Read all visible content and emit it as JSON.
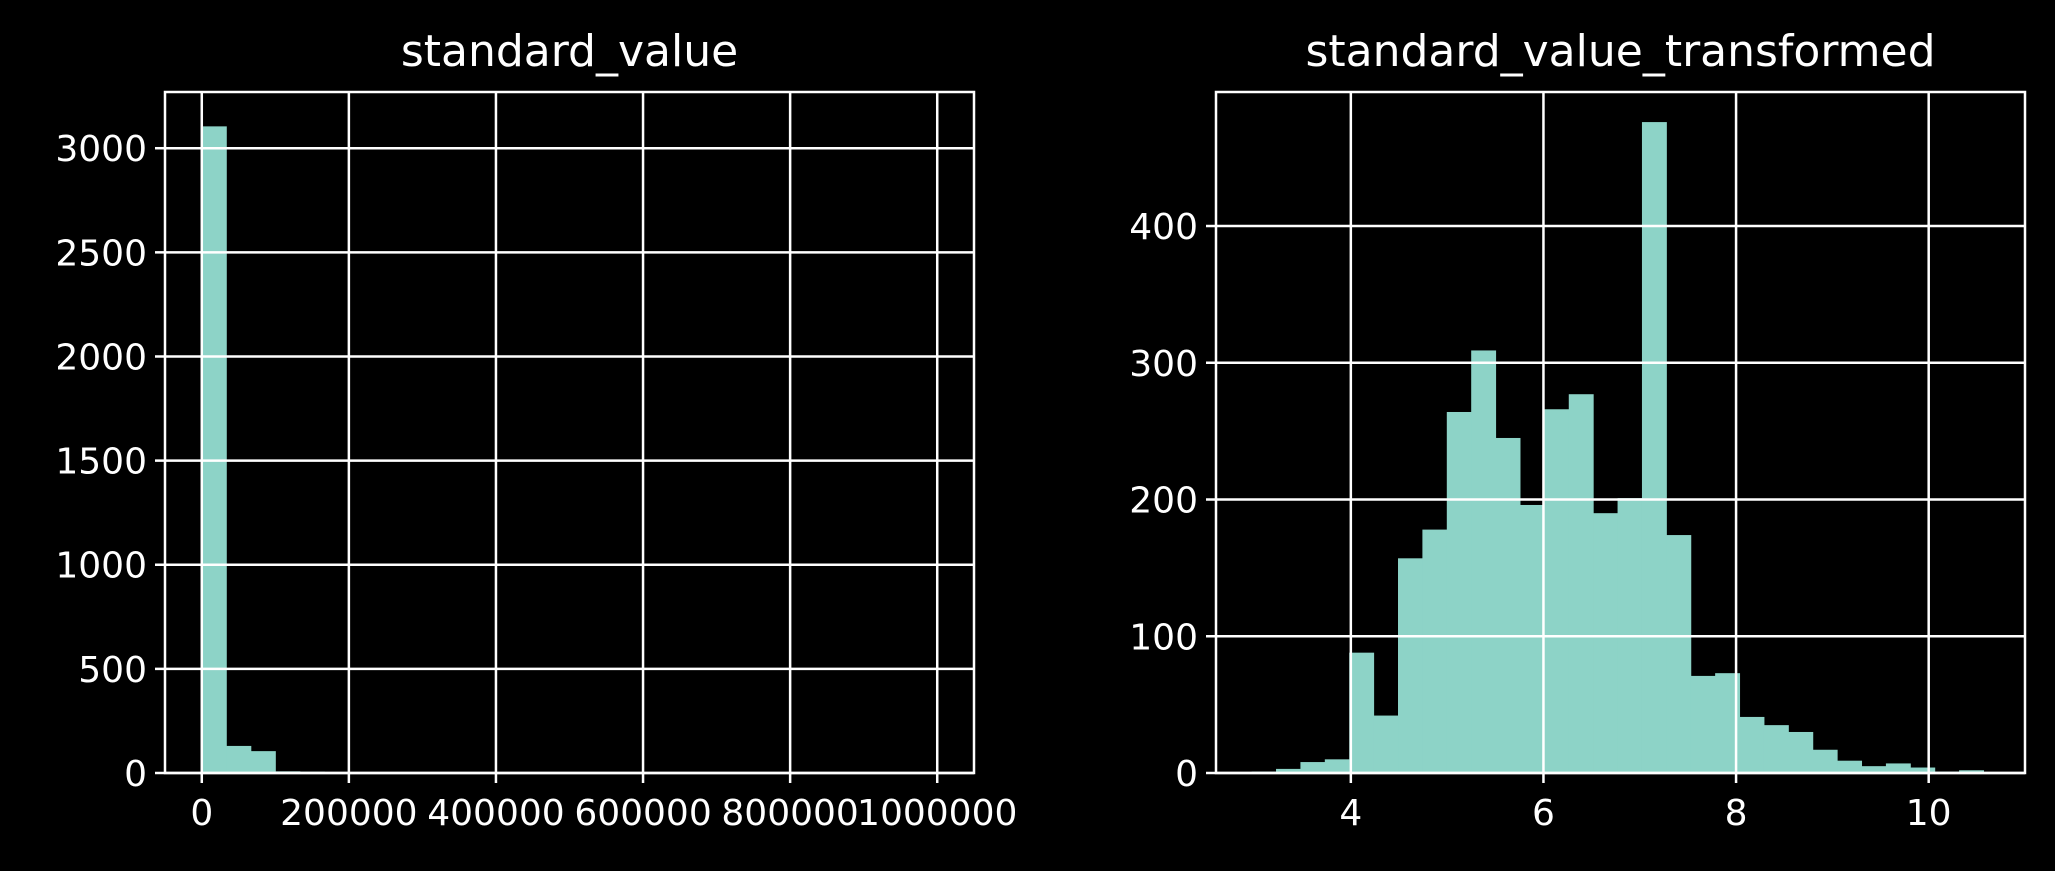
{
  "chart_data": [
    {
      "type": "bar",
      "title": "standard_value",
      "xlabel": "",
      "ylabel": "",
      "xlim": [
        -50000,
        1050000
      ],
      "ylim": [
        0,
        3270
      ],
      "xticks": [
        0,
        200000,
        400000,
        600000,
        800000,
        1000000
      ],
      "xtick_labels": [
        "0",
        "200000",
        "400000",
        "600000",
        "800000",
        "1000000"
      ],
      "yticks": [
        0,
        500,
        1000,
        1500,
        2000,
        2500,
        3000
      ],
      "ytick_labels": [
        "0",
        "500",
        "1000",
        "1500",
        "2000",
        "2500",
        "3000"
      ],
      "grid": true,
      "bin_start": 0,
      "bin_width": 33333.33,
      "values": [
        3105,
        130,
        105,
        8,
        6,
        3,
        2,
        2,
        1,
        1,
        1,
        1,
        1,
        1,
        1,
        1,
        1,
        1,
        1,
        1,
        1,
        1,
        1,
        1,
        1,
        1,
        1,
        1,
        1,
        1
      ],
      "bar_color": "#8dd3c7"
    },
    {
      "type": "bar",
      "title": "standard_value_transformed",
      "xlabel": "",
      "ylabel": "",
      "xlim": [
        2.6,
        11.0
      ],
      "ylim": [
        0,
        498
      ],
      "xticks": [
        4,
        6,
        8,
        10
      ],
      "xtick_labels": [
        "4",
        "6",
        "8",
        "10"
      ],
      "yticks": [
        0,
        100,
        200,
        300,
        400
      ],
      "ytick_labels": [
        "0",
        "100",
        "200",
        "300",
        "400"
      ],
      "grid": true,
      "bin_start": 2.97,
      "bin_width": 0.2533,
      "values": [
        1,
        3,
        8,
        10,
        88,
        42,
        157,
        178,
        264,
        309,
        245,
        196,
        266,
        277,
        190,
        201,
        476,
        174,
        71,
        73,
        41,
        35,
        30,
        17,
        9,
        5,
        7,
        4,
        1,
        2
      ],
      "bar_color": "#8dd3c7"
    }
  ]
}
